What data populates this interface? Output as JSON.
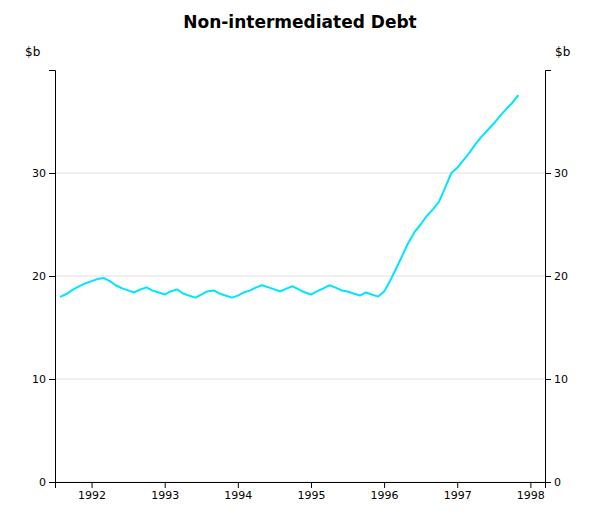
{
  "chart_data": {
    "type": "line",
    "title": "Non-intermediated Debt",
    "ylabel": "$b",
    "y2label": "$b",
    "x": [
      1991.58,
      1991.67,
      1991.75,
      1991.83,
      1991.92,
      1992.0,
      1992.08,
      1992.17,
      1992.25,
      1992.33,
      1992.42,
      1992.5,
      1992.58,
      1992.67,
      1992.75,
      1992.83,
      1992.92,
      1993.0,
      1993.08,
      1993.17,
      1993.25,
      1993.33,
      1993.42,
      1993.5,
      1993.58,
      1993.67,
      1993.75,
      1993.83,
      1993.92,
      1994.0,
      1994.08,
      1994.17,
      1994.25,
      1994.33,
      1994.42,
      1994.5,
      1994.58,
      1994.67,
      1994.75,
      1994.83,
      1994.92,
      1995.0,
      1995.08,
      1995.17,
      1995.25,
      1995.33,
      1995.42,
      1995.5,
      1995.58,
      1995.67,
      1995.75,
      1995.83,
      1995.92,
      1996.0,
      1996.08,
      1996.17,
      1996.25,
      1996.33,
      1996.42,
      1996.5,
      1996.58,
      1996.67,
      1996.75,
      1996.83,
      1996.92,
      1997.0,
      1997.08,
      1997.17,
      1997.25,
      1997.33,
      1997.42,
      1997.5,
      1997.58,
      1997.67,
      1997.75,
      1997.83
    ],
    "values": [
      18.0,
      18.3,
      18.7,
      19.0,
      19.3,
      19.5,
      19.7,
      19.8,
      19.5,
      19.1,
      18.8,
      18.6,
      18.4,
      18.7,
      18.9,
      18.6,
      18.4,
      18.2,
      18.5,
      18.7,
      18.3,
      18.1,
      17.9,
      18.2,
      18.5,
      18.6,
      18.3,
      18.1,
      17.9,
      18.1,
      18.4,
      18.6,
      18.9,
      19.1,
      18.9,
      18.7,
      18.5,
      18.8,
      19.0,
      18.7,
      18.4,
      18.2,
      18.5,
      18.8,
      19.1,
      18.9,
      18.6,
      18.5,
      18.3,
      18.1,
      18.4,
      18.2,
      18.0,
      18.5,
      19.5,
      20.8,
      22.0,
      23.2,
      24.3,
      25.0,
      25.8,
      26.5,
      27.2,
      28.5,
      30.0,
      30.5,
      31.2,
      32.0,
      32.8,
      33.5,
      34.2,
      34.8,
      35.5,
      36.2,
      36.8,
      37.5
    ],
    "color": "#00e5ff",
    "xlim": [
      1991.5,
      1998.2
    ],
    "xticks": [
      1992,
      1993,
      1994,
      1995,
      1996,
      1997,
      1998
    ],
    "ylim": [
      0,
      40
    ],
    "yticks": [
      0,
      10,
      20,
      30
    ],
    "y2lim": [
      0,
      40
    ],
    "y2ticks": [
      0,
      10,
      20,
      30
    ],
    "grid": true
  }
}
